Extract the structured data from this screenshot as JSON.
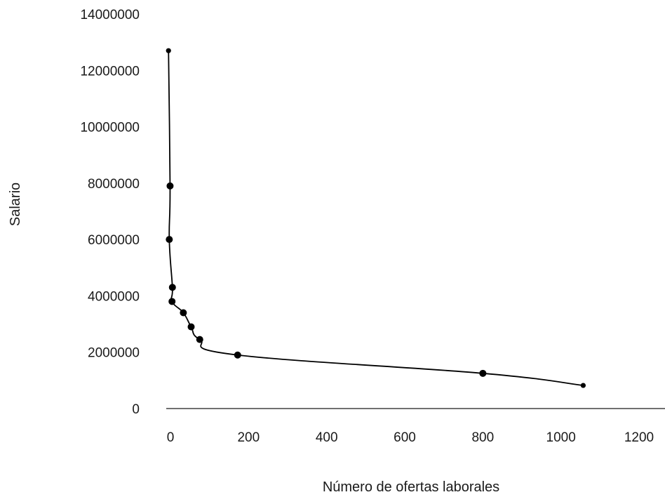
{
  "chart_data": {
    "type": "scatter",
    "xlabel": "Número de ofertas laborales",
    "ylabel": "Salario",
    "xlim": [
      0,
      1200
    ],
    "ylim": [
      0,
      14000000
    ],
    "x_ticks": [
      "0",
      "200",
      "400",
      "600",
      "800",
      "1000",
      "1200"
    ],
    "y_ticks": [
      "0",
      "2000000",
      "4000000",
      "6000000",
      "8000000",
      "10000000",
      "12000000",
      "14000000"
    ],
    "grid": false,
    "legend": "none",
    "line_color": "#000000",
    "marker_color": "#000000",
    "series": [
      {
        "points": [
          {
            "x": -5,
            "y": 12700000
          },
          {
            "x": -1,
            "y": 7900000
          },
          {
            "x": -3,
            "y": 6000000
          },
          {
            "x": 5,
            "y": 4300000
          },
          {
            "x": 4,
            "y": 3800000
          },
          {
            "x": 33,
            "y": 3400000
          },
          {
            "x": 53,
            "y": 2900000
          },
          {
            "x": 75,
            "y": 2450000
          },
          {
            "x": 172,
            "y": 1900000
          },
          {
            "x": 800,
            "y": 1250000
          },
          {
            "x": 1057,
            "y": 820000
          }
        ]
      }
    ]
  }
}
